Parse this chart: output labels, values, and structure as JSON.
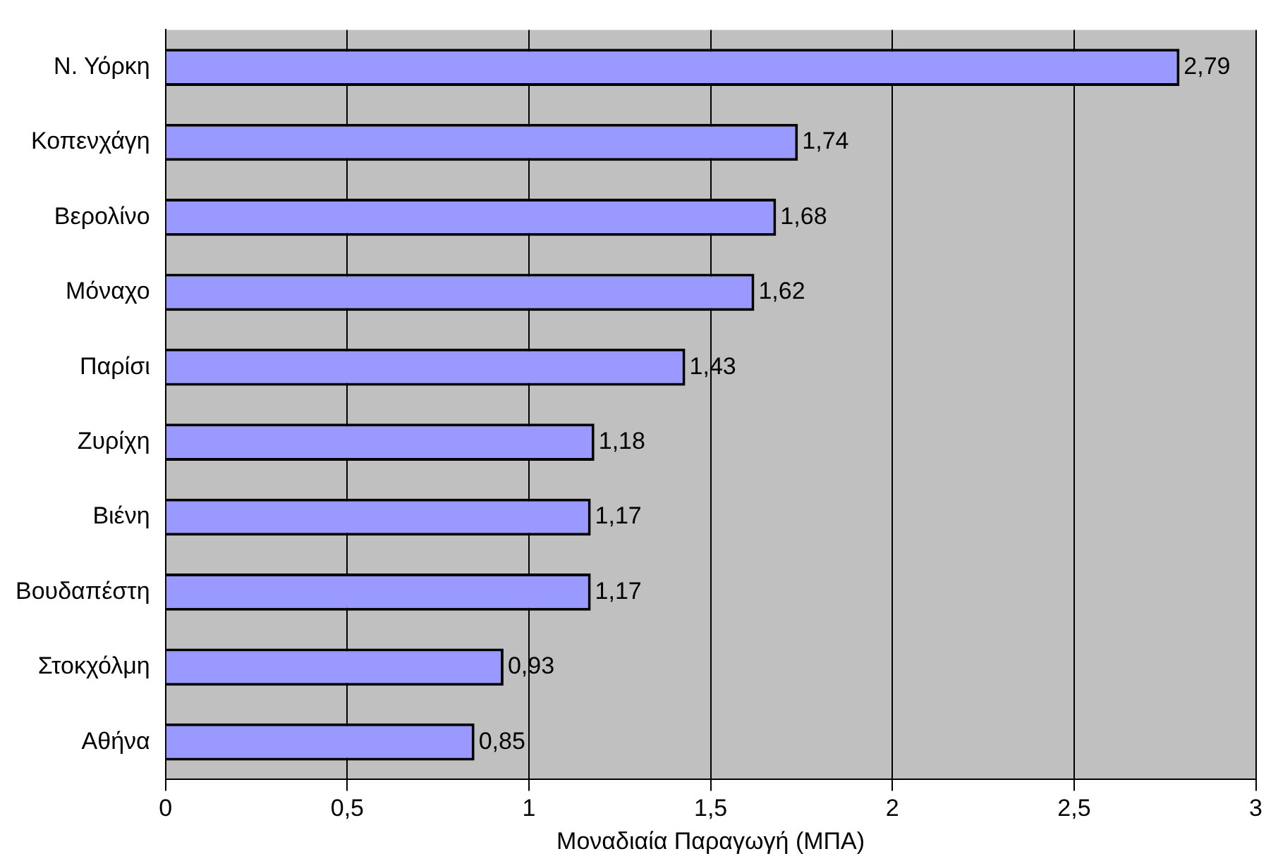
{
  "chart_data": {
    "type": "bar",
    "orientation": "horizontal",
    "xlabel": "Μοναδιαία Παραγωγή (ΜΠΑ)",
    "categories": [
      "Ν. Υόρκη",
      "Κοπενχάγη",
      "Βερολίνο",
      "Μόναχο",
      "Παρίσι",
      "Ζυρίχη",
      "Βιένη",
      "Βουδαπέστη",
      "Στοκχόλμη",
      "Αθήνα"
    ],
    "values": [
      2.79,
      1.74,
      1.68,
      1.62,
      1.43,
      1.18,
      1.17,
      1.17,
      0.93,
      0.85
    ],
    "value_labels": [
      "2,79",
      "1,74",
      "1,68",
      "1,62",
      "1,43",
      "1,18",
      "1,17",
      "1,17",
      "0,93",
      "0,85"
    ],
    "color": "#9999ff",
    "xlim": [
      0,
      3
    ],
    "xticks": [
      0,
      {
        "value": 0.5,
        "label": "0,5"
      },
      1,
      {
        "value": 1.5,
        "label": "1,5"
      },
      2,
      {
        "value": 2.5,
        "label": "2,5"
      },
      3
    ],
    "grid": "x",
    "legend": false
  }
}
